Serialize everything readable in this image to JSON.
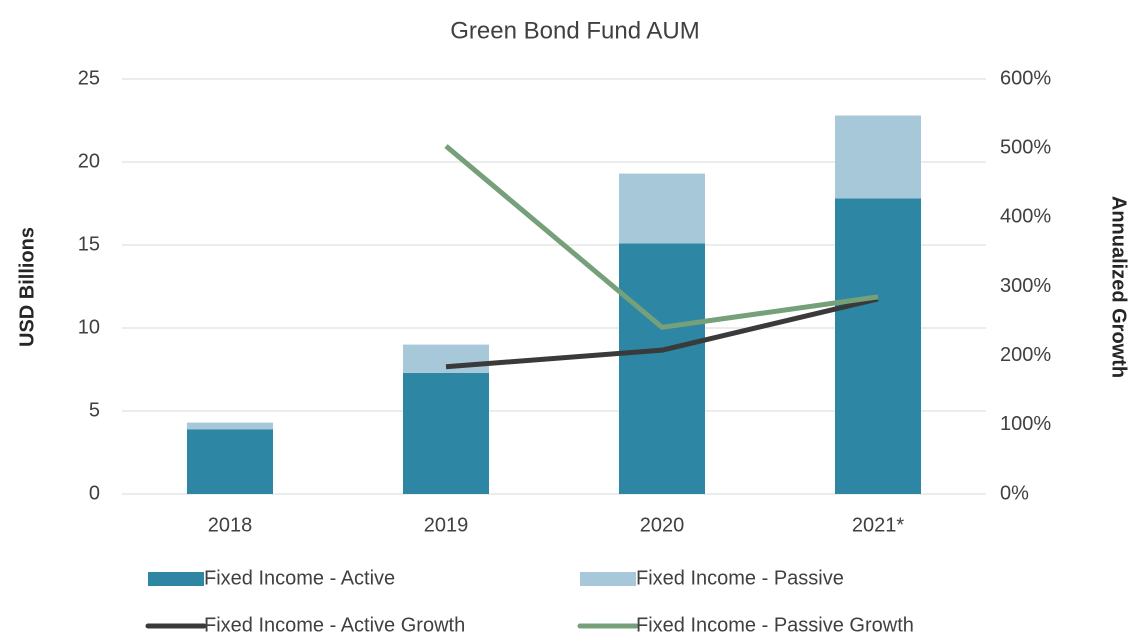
{
  "chart_data": {
    "type": "bar",
    "stacked": true,
    "title": "Green Bond Fund AUM",
    "y_label": "USD Billions",
    "y2_label": "Annualized Growth",
    "categories": [
      "2018",
      "2019",
      "2020",
      "2021*"
    ],
    "series": [
      {
        "name": "Fixed Income - Active",
        "type": "bar",
        "color": "#2c86a4",
        "values": [
          3.9,
          7.3,
          15.1,
          17.8
        ]
      },
      {
        "name": "Fixed Income - Passive",
        "type": "bar",
        "color": "#a6c8d8",
        "values": [
          0.4,
          1.7,
          4.2,
          5.0
        ]
      },
      {
        "name": "Fixed Income - Active Growth",
        "type": "line",
        "axis": "y2",
        "color": "#3a3a3a",
        "values": [
          null,
          184,
          208,
          282
        ]
      },
      {
        "name": "Fixed Income - Passive Growth",
        "type": "line",
        "axis": "y2",
        "color": "#75a07a",
        "values": [
          null,
          503,
          241,
          285
        ]
      }
    ],
    "ylim": [
      0,
      25
    ],
    "yticks": [
      0,
      5,
      10,
      15,
      20,
      25
    ],
    "y2lim": [
      0,
      600
    ],
    "y2ticks": [
      {
        "value": 0,
        "label": "0%"
      },
      {
        "value": 100,
        "label": "100%"
      },
      {
        "value": 200,
        "label": "200%"
      },
      {
        "value": 300,
        "label": "300%"
      },
      {
        "value": 400,
        "label": "400%"
      },
      {
        "value": 500,
        "label": "500%"
      },
      {
        "value": 600,
        "label": "600%"
      }
    ],
    "grid": true,
    "legend": "bottom"
  }
}
